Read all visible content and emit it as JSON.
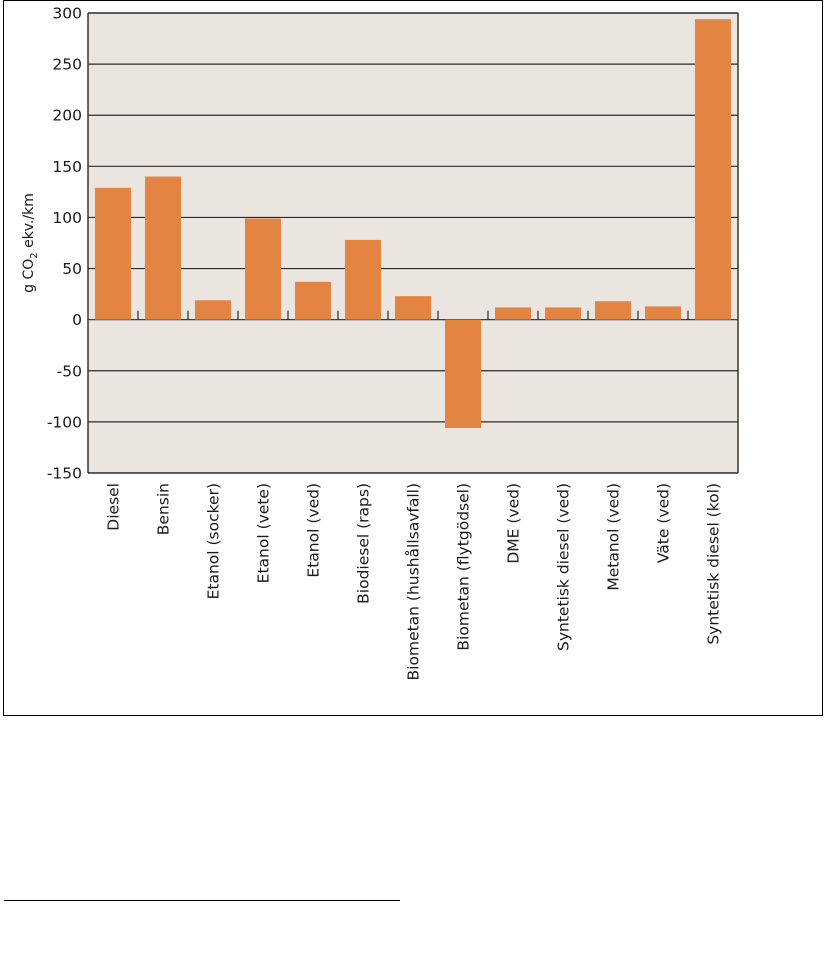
{
  "chart_data": {
    "type": "bar",
    "title": "",
    "xlabel": "",
    "ylabel": "g CO2 ekv./km",
    "ylabel_parts": {
      "before": "g CO",
      "sub": "2",
      "after": " ekv./km"
    },
    "ylim": [
      -150,
      300
    ],
    "yticks": [
      300,
      250,
      200,
      150,
      100,
      50,
      0,
      -50,
      -100,
      -150
    ],
    "grid": true,
    "legend": "none",
    "categories": [
      "Diesel",
      "Bensin",
      "Etanol (socker)",
      "Etanol (vete)",
      "Etanol (ved)",
      "Biodiesel (raps)",
      "Biometan (hushållsavfall)",
      "Biometan (flytgödsel)",
      "DME (ved)",
      "Syntetisk diesel (ved)",
      "Metanol (ved)",
      "Väte (ved)",
      "Syntetisk diesel (kol)"
    ],
    "values": [
      129,
      140,
      19,
      99,
      37,
      78,
      23,
      -106,
      12,
      12,
      18,
      13,
      294
    ]
  },
  "colors": {
    "bar": "#e38443",
    "plot_background": "#ebe5df",
    "gridline": "#2a2a2a",
    "text": "#1a1a1a"
  }
}
